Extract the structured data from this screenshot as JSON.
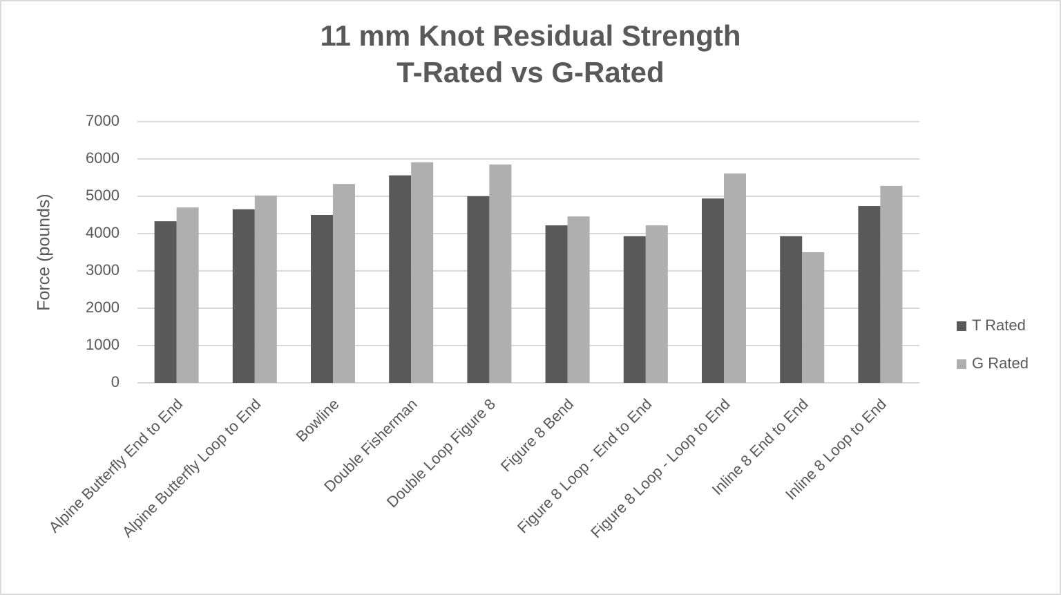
{
  "chart_data": {
    "type": "bar",
    "title": "11 mm Knot Residual Strength",
    "subtitle": "T-Rated vs G-Rated",
    "y_label": "Force (pounds)",
    "categories": [
      "Alpine Butterfly End to End",
      "Alpine Butterfly Loop to End",
      "Bowline",
      "Double Fisherman",
      "Double Loop Figure 8",
      "Figure 8 Bend",
      "Figure 8 Loop - End to End",
      "Figure 8 Loop - Loop to End",
      "Inline 8 End to End",
      "Inline 8 Loop to End"
    ],
    "series": [
      {
        "name": "T Rated",
        "color": "#595959",
        "values": [
          4330,
          4650,
          4500,
          5560,
          5000,
          4220,
          3930,
          4940,
          3930,
          4740
        ]
      },
      {
        "name": "G Rated",
        "color": "#afafaf",
        "values": [
          4700,
          5020,
          5330,
          5910,
          5850,
          4460,
          4220,
          5610,
          3500,
          5280
        ]
      }
    ],
    "ylim": [
      0,
      7000
    ],
    "yticks": [
      0,
      1000,
      2000,
      3000,
      4000,
      5000,
      6000,
      7000
    ],
    "grid": true,
    "legend": "right"
  }
}
